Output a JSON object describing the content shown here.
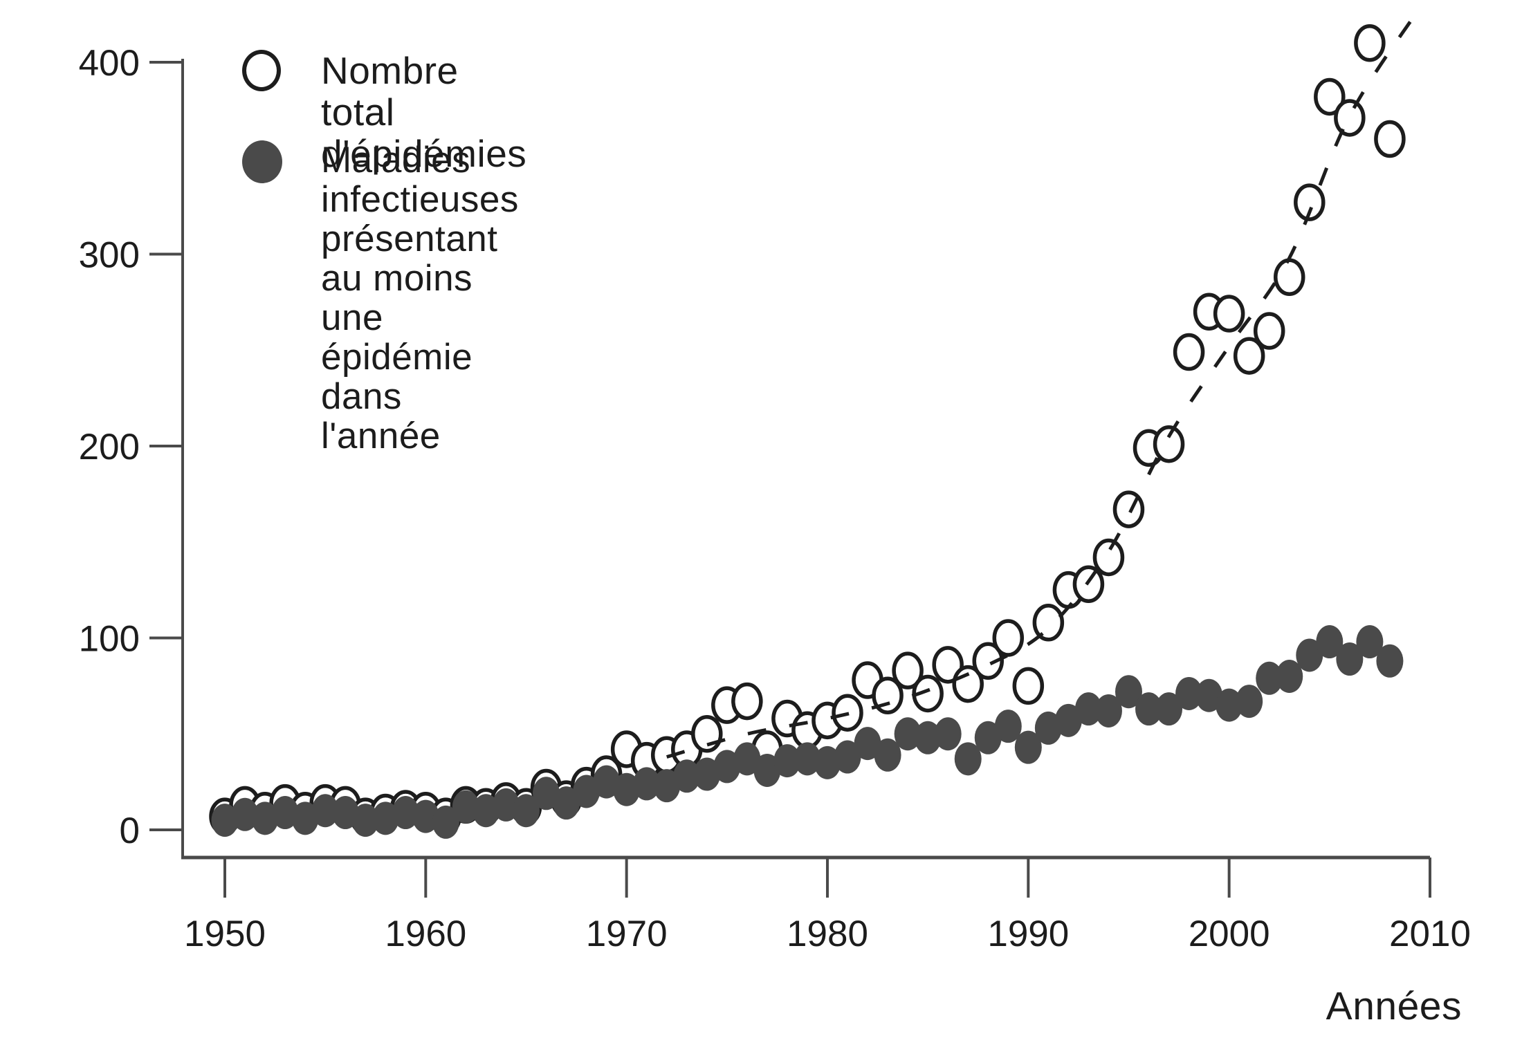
{
  "figure": {
    "legend": {
      "item1_label": "Nombre total d'épidémies",
      "item2_line1": "Maladies infectieuses présentant",
      "item2_line2": "au moins une épidémie dans l'année"
    },
    "x_axis_label": "Années"
  },
  "chart_data": {
    "type": "scatter",
    "title": "",
    "xlabel": "Années",
    "ylabel": "",
    "grid": false,
    "legend_position": "top-left",
    "xlim": [
      1948,
      2010.5
    ],
    "ylim": [
      0,
      420
    ],
    "x_ticks": [
      1950,
      1960,
      1970,
      1980,
      1990,
      2000,
      2010
    ],
    "y_ticks": [
      0,
      100,
      200,
      300,
      400
    ],
    "years": [
      1950,
      1951,
      1952,
      1953,
      1954,
      1955,
      1956,
      1957,
      1958,
      1959,
      1960,
      1961,
      1962,
      1963,
      1964,
      1965,
      1966,
      1967,
      1968,
      1969,
      1970,
      1971,
      1972,
      1973,
      1974,
      1975,
      1976,
      1977,
      1978,
      1979,
      1980,
      1981,
      1982,
      1983,
      1984,
      1985,
      1986,
      1987,
      1988,
      1989,
      1990,
      1991,
      1992,
      1993,
      1994,
      1995,
      1996,
      1997,
      1998,
      1999,
      2000,
      2001,
      2002,
      2003,
      2004,
      2005,
      2006,
      2007,
      2008
    ],
    "series": [
      {
        "name": "Nombre total d'épidémies",
        "marker": "open-circle",
        "color": "#1d1d1d",
        "values": [
          7,
          13,
          10,
          14,
          10,
          14,
          13,
          7,
          9,
          11,
          10,
          7,
          13,
          12,
          15,
          12,
          22,
          16,
          23,
          29,
          42,
          36,
          39,
          42,
          50,
          65,
          67,
          42,
          58,
          52,
          57,
          61,
          78,
          70,
          83,
          71,
          86,
          76,
          88,
          100,
          75,
          108,
          125,
          128,
          142,
          167,
          199,
          201,
          249,
          270,
          269,
          247,
          260,
          288,
          327,
          382,
          371,
          410,
          360
        ]
      },
      {
        "name": "Maladies infectieuses présentant au moins une épidémie dans l'année",
        "marker": "filled-circle",
        "color": "#4a4a4a",
        "values": [
          5,
          8,
          6,
          9,
          6,
          10,
          9,
          5,
          6,
          9,
          7,
          4,
          12,
          10,
          13,
          10,
          19,
          14,
          20,
          25,
          21,
          24,
          23,
          28,
          29,
          33,
          37,
          31,
          36,
          37,
          35,
          38,
          45,
          39,
          50,
          48,
          50,
          37,
          48,
          54,
          43,
          53,
          57,
          63,
          62,
          72,
          63,
          63,
          71,
          70,
          65,
          67,
          79,
          80,
          91,
          98,
          89,
          98,
          88
        ]
      }
    ],
    "trend_line": {
      "applies_to": "Nombre total d'épidémies",
      "style": "dashed",
      "points": [
        [
          1972,
          38
        ],
        [
          1976,
          50
        ],
        [
          1980,
          58
        ],
        [
          1984,
          69
        ],
        [
          1988,
          86
        ],
        [
          1991,
          105
        ],
        [
          1994,
          145
        ],
        [
          1997,
          205
        ],
        [
          2000,
          252
        ],
        [
          2003,
          298
        ],
        [
          2006,
          372
        ],
        [
          2009.6,
          430
        ]
      ]
    }
  }
}
